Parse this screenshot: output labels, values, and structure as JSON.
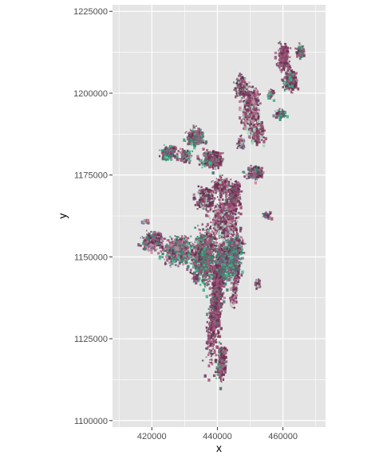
{
  "chart_data": {
    "type": "raster",
    "xlabel": "x",
    "ylabel": "y",
    "xlim": [
      408000,
      473000
    ],
    "ylim": [
      1098000,
      1227000
    ],
    "x_ticks": [
      420000,
      440000,
      460000
    ],
    "y_ticks": [
      1100000,
      1125000,
      1150000,
      1175000,
      1200000,
      1225000
    ],
    "x_tick_labels": [
      "420000",
      "440000",
      "460000"
    ],
    "y_tick_labels": [
      "1100000",
      "1125000",
      "1150000",
      "1175000",
      "1200000",
      "1225000"
    ],
    "grid": true,
    "panel_background": "#e5e5e5",
    "gridline_color": "#ffffff",
    "raster_palette": [
      "#8a4a6e",
      "#6e2f52",
      "#a35a7a",
      "#4f6e6a",
      "#3fb58a",
      "#2e8a6a",
      "#7a6a8a",
      "#c98aa0",
      "#5a3a5a",
      "#9fd4b8"
    ]
  }
}
